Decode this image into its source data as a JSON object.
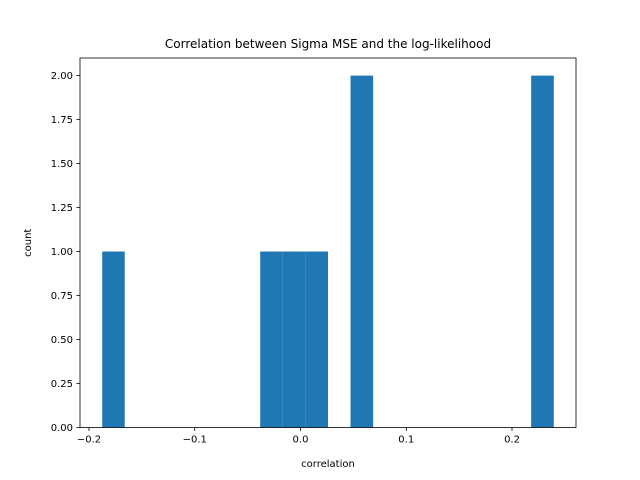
{
  "chart_data": {
    "type": "bar",
    "title": "Correlation between Sigma MSE and the log-likelihood",
    "xlabel": "correlation",
    "ylabel": "count",
    "xlim": [
      -0.2085,
      0.2605
    ],
    "ylim": [
      0,
      2.1
    ],
    "grid": false,
    "bar_color": "#1f77b4",
    "bins": [
      {
        "x0": -0.1875,
        "x1": -0.1662,
        "count": 1
      },
      {
        "x0": -0.1662,
        "x1": -0.1448,
        "count": 0
      },
      {
        "x0": -0.1448,
        "x1": -0.1235,
        "count": 0
      },
      {
        "x0": -0.1235,
        "x1": -0.1021,
        "count": 0
      },
      {
        "x0": -0.1021,
        "x1": -0.0808,
        "count": 0
      },
      {
        "x0": -0.0808,
        "x1": -0.0594,
        "count": 0
      },
      {
        "x0": -0.0594,
        "x1": -0.0381,
        "count": 0
      },
      {
        "x0": -0.0381,
        "x1": -0.0167,
        "count": 1
      },
      {
        "x0": -0.0167,
        "x1": 0.0046,
        "count": 1
      },
      {
        "x0": 0.0046,
        "x1": 0.026,
        "count": 1
      },
      {
        "x0": 0.026,
        "x1": 0.0473,
        "count": 0
      },
      {
        "x0": 0.0473,
        "x1": 0.0687,
        "count": 2
      },
      {
        "x0": 0.0687,
        "x1": 0.09,
        "count": 0
      },
      {
        "x0": 0.09,
        "x1": 0.1114,
        "count": 0
      },
      {
        "x0": 0.1114,
        "x1": 0.1327,
        "count": 0
      },
      {
        "x0": 0.1327,
        "x1": 0.1541,
        "count": 0
      },
      {
        "x0": 0.1541,
        "x1": 0.1754,
        "count": 0
      },
      {
        "x0": 0.1754,
        "x1": 0.1968,
        "count": 0
      },
      {
        "x0": 0.1968,
        "x1": 0.2181,
        "count": 0
      },
      {
        "x0": 0.2181,
        "x1": 0.2395,
        "count": 2
      }
    ],
    "x_ticks": [
      {
        "value": -0.2,
        "label": "−0.2"
      },
      {
        "value": -0.1,
        "label": "−0.1"
      },
      {
        "value": 0.0,
        "label": "0.0"
      },
      {
        "value": 0.1,
        "label": "0.1"
      },
      {
        "value": 0.2,
        "label": "0.2"
      }
    ],
    "y_ticks": [
      {
        "value": 0.0,
        "label": "0.00"
      },
      {
        "value": 0.25,
        "label": "0.25"
      },
      {
        "value": 0.5,
        "label": "0.50"
      },
      {
        "value": 0.75,
        "label": "0.75"
      },
      {
        "value": 1.0,
        "label": "1.00"
      },
      {
        "value": 1.25,
        "label": "1.25"
      },
      {
        "value": 1.5,
        "label": "1.50"
      },
      {
        "value": 1.75,
        "label": "1.75"
      },
      {
        "value": 2.0,
        "label": "2.00"
      }
    ]
  }
}
